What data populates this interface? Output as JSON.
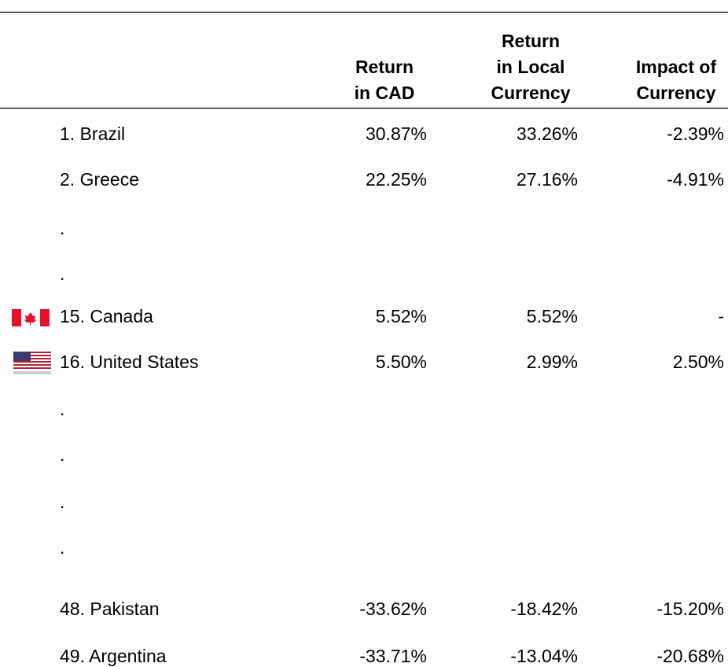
{
  "table": {
    "columns": [
      [
        "Return",
        "in CAD"
      ],
      [
        "Return",
        "in Local",
        "Currency"
      ],
      [
        "Impact of",
        "Currency"
      ]
    ],
    "rows": [
      {
        "label": "1. Brazil",
        "cells": [
          "30.87%",
          "33.26%",
          "-2.39%"
        ]
      },
      {
        "label": "2. Greece",
        "cells": [
          "22.25%",
          "27.16%",
          "-4.91%"
        ]
      },
      {
        "label": ".",
        "cells": []
      },
      {
        "label": ".",
        "cells": []
      },
      {
        "label": "15. Canada",
        "cells": [
          "5.52%",
          "5.52%",
          "-"
        ]
      },
      {
        "label": "16. United States",
        "cells": [
          "5.50%",
          "2.99%",
          "2.50%"
        ]
      },
      {
        "label": ".",
        "cells": []
      },
      {
        "label": ".",
        "cells": []
      },
      {
        "label": ".",
        "cells": []
      },
      {
        "label": ".",
        "cells": []
      },
      {
        "label": "48. Pakistan",
        "cells": [
          "-33.62%",
          "-18.42%",
          "-15.20%"
        ]
      },
      {
        "label": "49. Argentina",
        "cells": [
          "-33.71%",
          "-13.04%",
          "-20.68%"
        ]
      }
    ]
  }
}
